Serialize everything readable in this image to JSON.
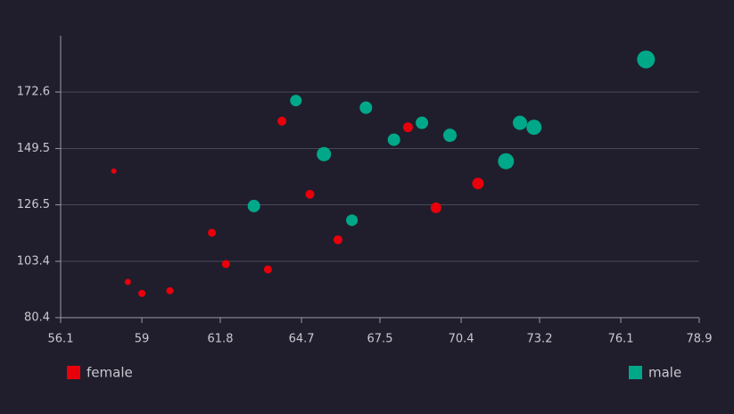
{
  "chart_data": {
    "type": "scatter",
    "xlim": [
      56.1,
      78.9
    ],
    "xticks": [
      56.1,
      59,
      61.8,
      64.7,
      67.5,
      70.4,
      73.2,
      76.1,
      78.9
    ],
    "ylim": [
      80.4,
      195.6
    ],
    "yticks": [
      80.4,
      103.4,
      126.5,
      149.5,
      172.6
    ],
    "grid": true,
    "series": [
      {
        "name": "female",
        "color": "#e8000b",
        "x": [
          58.0,
          58.5,
          59.0,
          60.0,
          61.5,
          62.0,
          63.5,
          64.0,
          65.0,
          66.0,
          68.5,
          69.5,
          71.0
        ],
        "values": [
          140.3,
          95.0,
          90.3,
          91.4,
          115.1,
          102.3,
          100.1,
          160.7,
          130.8,
          112.2,
          158.2,
          125.3,
          135.2
        ],
        "sizes": [
          3,
          3.5,
          4,
          4,
          4.5,
          4.5,
          4.5,
          5,
          5,
          5,
          5.5,
          6,
          6.5
        ]
      },
      {
        "name": "male",
        "color": "#00a88a",
        "x": [
          63.0,
          64.5,
          65.5,
          66.5,
          67.0,
          68.0,
          69.0,
          70.0,
          72.0,
          72.5,
          73.0,
          77.0
        ],
        "values": [
          126.0,
          169.1,
          147.2,
          120.2,
          166.2,
          153.1,
          160.0,
          154.9,
          144.3,
          160.0,
          158.2,
          185.9
        ],
        "sizes": [
          7,
          6.5,
          8,
          6.5,
          7,
          7,
          7,
          7.5,
          9,
          8,
          8.5,
          10
        ]
      }
    ]
  }
}
